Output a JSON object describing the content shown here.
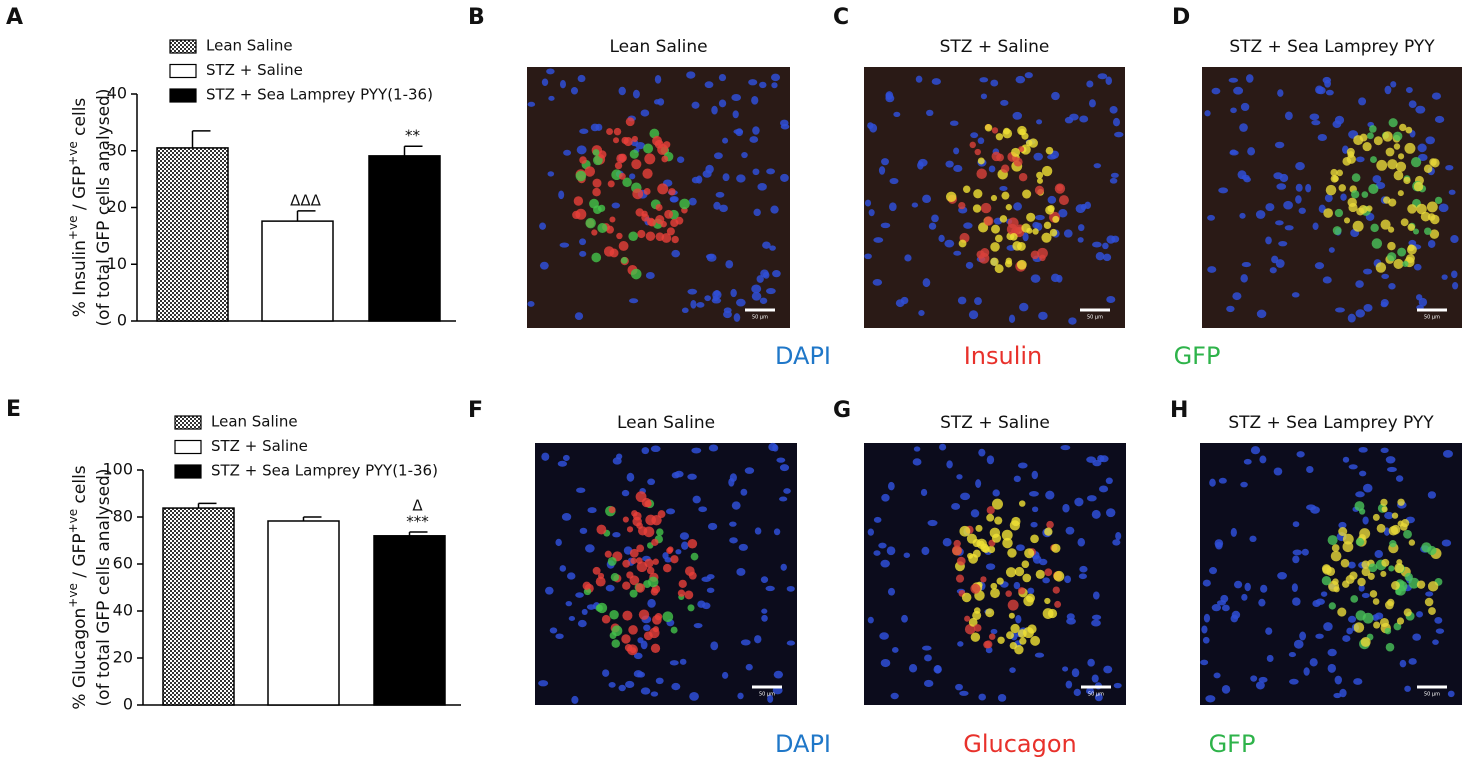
{
  "chart_data": [
    {
      "type": "bar",
      "panel_label": "A",
      "ylabel": {
        "pre": "% Insulin",
        "sup1": "+ve",
        "mid": " / GFP",
        "sup2": "+ve",
        "post": " cells",
        "line2": "(of total GFP cells analysed)"
      },
      "categories": [
        "Lean Saline",
        "STZ + Saline",
        "STZ + Sea Lamprey PYY(1-36)"
      ],
      "values": [
        30.5,
        17.6,
        29.1
      ],
      "errors": [
        3.0,
        1.8,
        1.7
      ],
      "fills": [
        "checker",
        "#ffffff",
        "#000000"
      ],
      "value_annotations": [
        [],
        [
          "ΔΔΔ"
        ],
        [
          "**"
        ]
      ],
      "ylim": [
        0,
        40
      ],
      "yticks": [
        0,
        10,
        20,
        30,
        40
      ]
    },
    {
      "type": "bar",
      "panel_label": "E",
      "ylabel": {
        "pre": "% Glucagon",
        "sup1": "+ve",
        "mid": " / GFP",
        "sup2": "+ve",
        "post": " cells",
        "line2": "(of total GFP cells analysed)"
      },
      "categories": [
        "Lean Saline",
        "STZ + Saline",
        "STZ + Sea Lamprey PYY(1-36)"
      ],
      "values": [
        83.8,
        78.3,
        72.0
      ],
      "errors": [
        2.0,
        1.7,
        1.6
      ],
      "fills": [
        "checker",
        "#ffffff",
        "#000000"
      ],
      "value_annotations": [
        [],
        [],
        [
          "Δ",
          "***"
        ]
      ],
      "ylim": [
        0,
        100
      ],
      "yticks": [
        0,
        20,
        40,
        60,
        80,
        100
      ]
    }
  ],
  "panels": [
    [
      {
        "letter": "B",
        "title": "Lean Saline"
      },
      {
        "letter": "C",
        "title": "STZ + Saline"
      },
      {
        "letter": "D",
        "title": "STZ + Sea Lamprey PYY"
      }
    ],
    [
      {
        "letter": "F",
        "title": "Lean Saline"
      },
      {
        "letter": "G",
        "title": "STZ + Saline"
      },
      {
        "letter": "H",
        "title": "STZ + Sea Lamprey PYY"
      }
    ]
  ],
  "stain_labels": [
    [
      "DAPI",
      "Insulin",
      "GFP"
    ],
    [
      "DAPI",
      "Glucagon",
      "GFP"
    ]
  ],
  "scale_bar": "50 µm"
}
